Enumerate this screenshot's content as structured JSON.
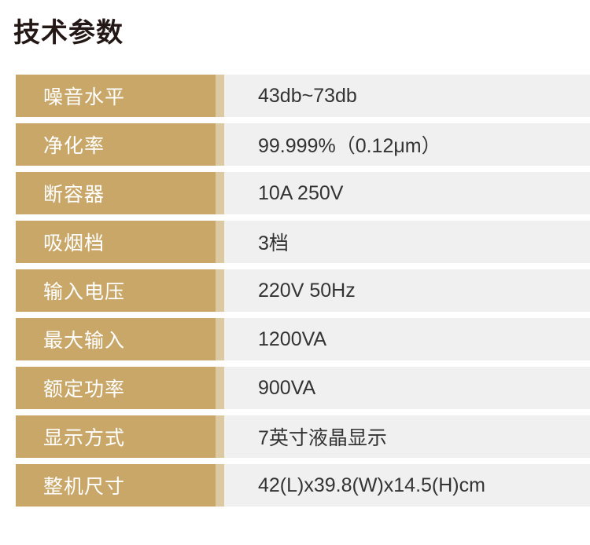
{
  "page": {
    "title": "技术参数"
  },
  "colors": {
    "title_text": "#231815",
    "label_bg": "#C9A768",
    "separator": "#DCC9A2",
    "value_bg": "#F0F0F0",
    "label_text": "#FFFFFF",
    "value_text": "#333333"
  },
  "spec_table": {
    "rows": [
      {
        "label": "噪音水平",
        "value": "43db~73db"
      },
      {
        "label": "净化率",
        "value": "99.999%（0.12μm）"
      },
      {
        "label": "断容器",
        "value": "10A 250V"
      },
      {
        "label": "吸烟档",
        "value": "3档"
      },
      {
        "label": "输入电压",
        "value": "220V 50Hz"
      },
      {
        "label": "最大输入",
        "value": "1200VA"
      },
      {
        "label": "额定功率",
        "value": "900VA"
      },
      {
        "label": "显示方式",
        "value": "7英寸液晶显示"
      },
      {
        "label": "整机尺寸",
        "value": "42(L)x39.8(W)x14.5(H)cm"
      }
    ]
  }
}
